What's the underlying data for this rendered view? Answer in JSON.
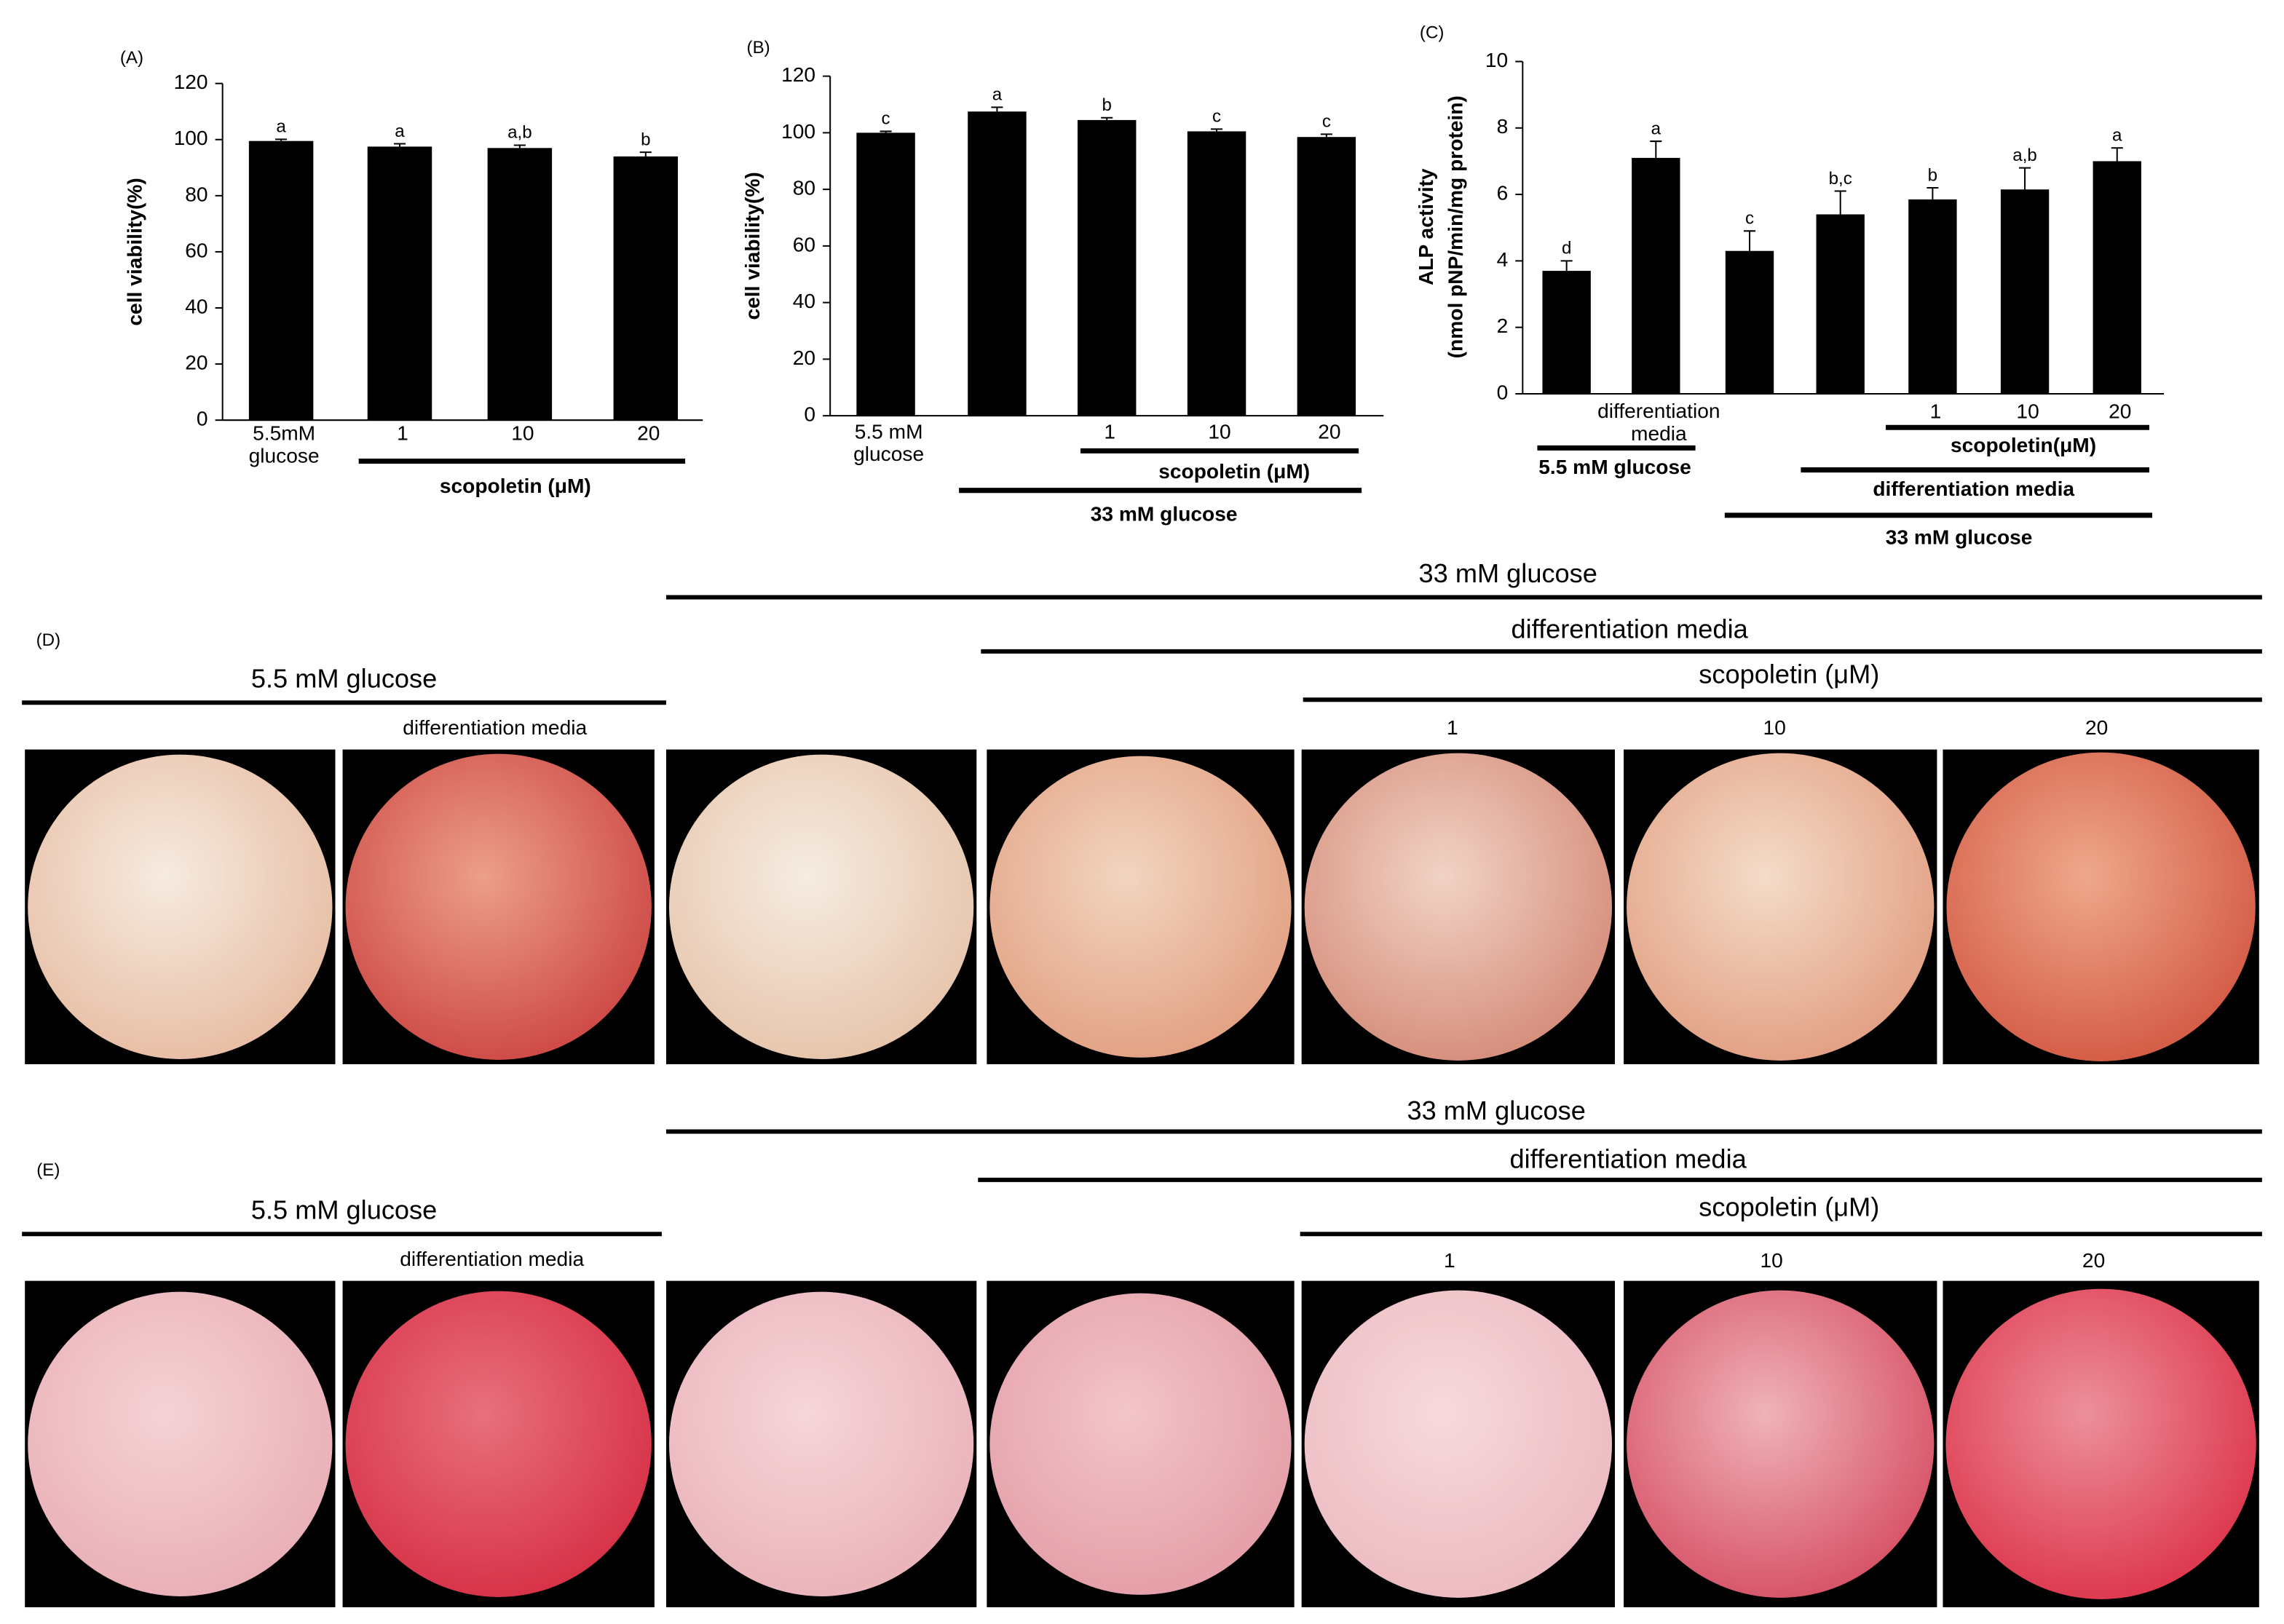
{
  "chart_data": [
    {
      "type": "bar",
      "panel_label": "(A)",
      "ylabel": [
        "cell viability(%)"
      ],
      "categories": [
        "5.5mM glucose",
        "1",
        "10",
        "20"
      ],
      "values": [
        99.5,
        97.5,
        97,
        94
      ],
      "errors": [
        0.6,
        1,
        1,
        1.5
      ],
      "letters": [
        "a",
        "a",
        "a,b",
        "b"
      ],
      "color": "#000000",
      "ylim": [
        0,
        120
      ],
      "yticks": [
        0,
        20,
        40,
        60,
        80,
        100,
        120
      ],
      "groups": [
        "scopoletin (μM)"
      ]
    },
    {
      "type": "bar",
      "panel_label": "(B)",
      "ylabel": [
        "cell viability(%)"
      ],
      "categories": [
        "5.5 mM glucose",
        null,
        "1",
        "10",
        "20"
      ],
      "values": [
        100,
        107.5,
        104.5,
        100.5,
        98.5
      ],
      "errors": [
        0.5,
        1.5,
        0.8,
        0.8,
        1
      ],
      "letters": [
        "c",
        "a",
        "b",
        "c",
        "c"
      ],
      "color": "#000000",
      "ylim": [
        0,
        120
      ],
      "yticks": [
        0,
        20,
        40,
        60,
        80,
        100,
        120
      ],
      "groups": [
        "scopoletin (μM)",
        "33 mM glucose"
      ]
    },
    {
      "type": "bar",
      "panel_label": "(C)",
      "ylabel": [
        "ALP activity",
        "(nmol pNP/min/mg protein)"
      ],
      "categories": [
        null,
        "differentiation media",
        null,
        null,
        "1",
        "10",
        "20"
      ],
      "values": [
        3.7,
        7.1,
        4.3,
        5.4,
        5.85,
        6.15,
        7.0
      ],
      "errors": [
        0.3,
        0.5,
        0.6,
        0.7,
        0.35,
        0.65,
        0.4
      ],
      "letters": [
        "d",
        "a",
        "c",
        "b,c",
        "b",
        "a,b",
        "a"
      ],
      "color": "#000000",
      "ylim": [
        0,
        10
      ],
      "yticks": [
        0,
        2,
        4,
        6,
        8,
        10
      ],
      "groups": [
        "5.5 mM glucose",
        "scopoletin(μM)",
        "differentiation media",
        "33 mM glucose"
      ]
    }
  ],
  "panels": [
    {
      "label": "(D)",
      "headers": [
        "33 mM glucose",
        "differentiation media",
        "scopoletin (μM)",
        "5.5 mM glucose"
      ],
      "column_labels": [
        "differentiation media",
        "1",
        "10",
        "20"
      ]
    },
    {
      "label": "(E)",
      "headers": [
        "33 mM glucose",
        "differentiation media",
        "scopoletin (μM)",
        "5.5 mM glucose"
      ],
      "column_labels": [
        "differentiation media",
        "1",
        "10",
        "20"
      ]
    }
  ]
}
